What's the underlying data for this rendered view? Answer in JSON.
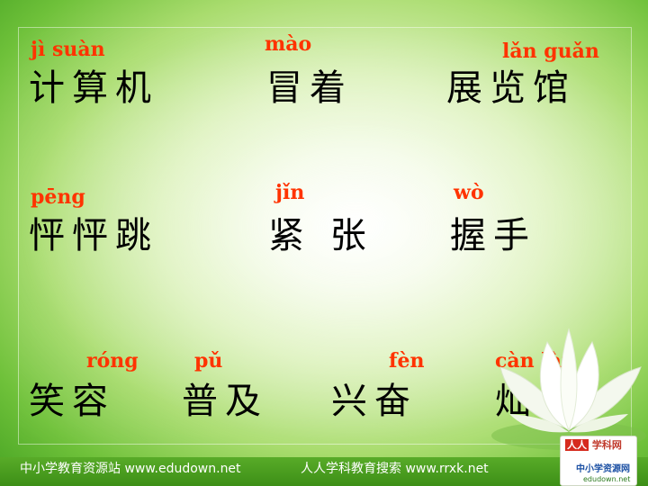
{
  "rows": [
    {
      "items": [
        {
          "pinyin": "jì    suàn",
          "hanzi": "计算机"
        },
        {
          "pinyin": "mào",
          "hanzi": "冒着"
        },
        {
          "pinyin": "lǎn  guǎn",
          "hanzi": "展览馆"
        }
      ]
    },
    {
      "items": [
        {
          "pinyin": "pēng",
          "hanzi": "怦怦跳"
        },
        {
          "pinyin": "jǐn",
          "hanzi": "紧 张"
        },
        {
          "pinyin": "wò",
          "hanzi": "握手"
        }
      ]
    },
    {
      "items": [
        {
          "pinyin": "róng",
          "hanzi": "笑容"
        },
        {
          "pinyin": "pǔ",
          "hanzi": "普及"
        },
        {
          "pinyin": "fèn",
          "hanzi": "兴奋"
        },
        {
          "pinyin": "càn  làn",
          "hanzi": "灿烂"
        }
      ]
    }
  ],
  "footer": {
    "left": "中小学教育资源站 www.edudown.net",
    "right": "人人学科教育搜索 www.rrxk.net"
  },
  "logos": {
    "top_brand": "学科网",
    "top_tag": "人人",
    "bottom_brand": "中小学资源网",
    "bottom_url": "edudown.net"
  },
  "colors": {
    "pinyin": "#ff3300",
    "hanzi": "#000000",
    "footer_bar": "#4a9e20"
  }
}
